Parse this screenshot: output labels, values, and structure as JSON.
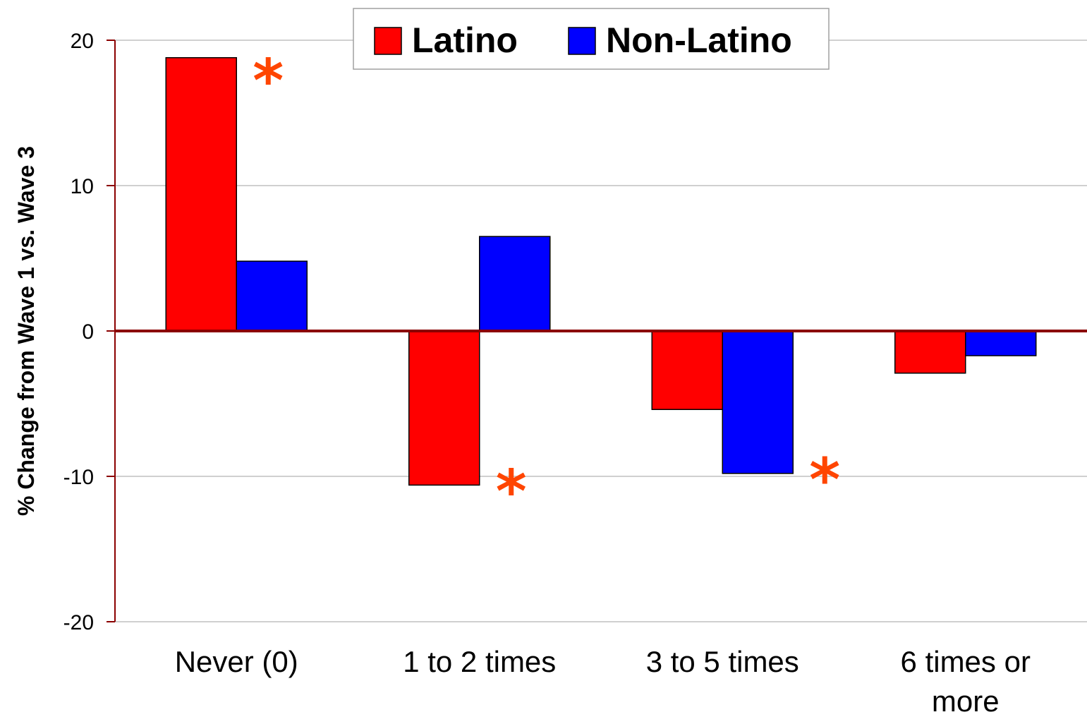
{
  "chart_data": {
    "type": "bar",
    "categories": [
      "Never (0)",
      "1 to 2 times",
      "3 to 5 times",
      "6 times or more"
    ],
    "series": [
      {
        "name": "Latino",
        "color": "#ff0000",
        "values": [
          18.8,
          -10.6,
          -5.4,
          -2.9
        ]
      },
      {
        "name": "Non-Latino",
        "color": "#0000ff",
        "values": [
          4.8,
          6.5,
          -9.8,
          -1.7
        ]
      }
    ],
    "ylabel": "% Change from Wave 1 vs. Wave 3",
    "xlabel": "",
    "ylim": [
      -20,
      20
    ],
    "yticks": [
      20,
      10,
      0,
      -10,
      -20
    ],
    "grid": true,
    "legend_position": "top-center",
    "axis_color": "#8b0000",
    "significance_marker": {
      "symbol": "*",
      "color": "#ff4500",
      "marks": [
        {
          "category": "Never (0)",
          "series": "Latino"
        },
        {
          "category": "1 to 2 times",
          "series": "Latino"
        },
        {
          "category": "3 to 5 times",
          "series": "Non-Latino"
        }
      ]
    }
  }
}
